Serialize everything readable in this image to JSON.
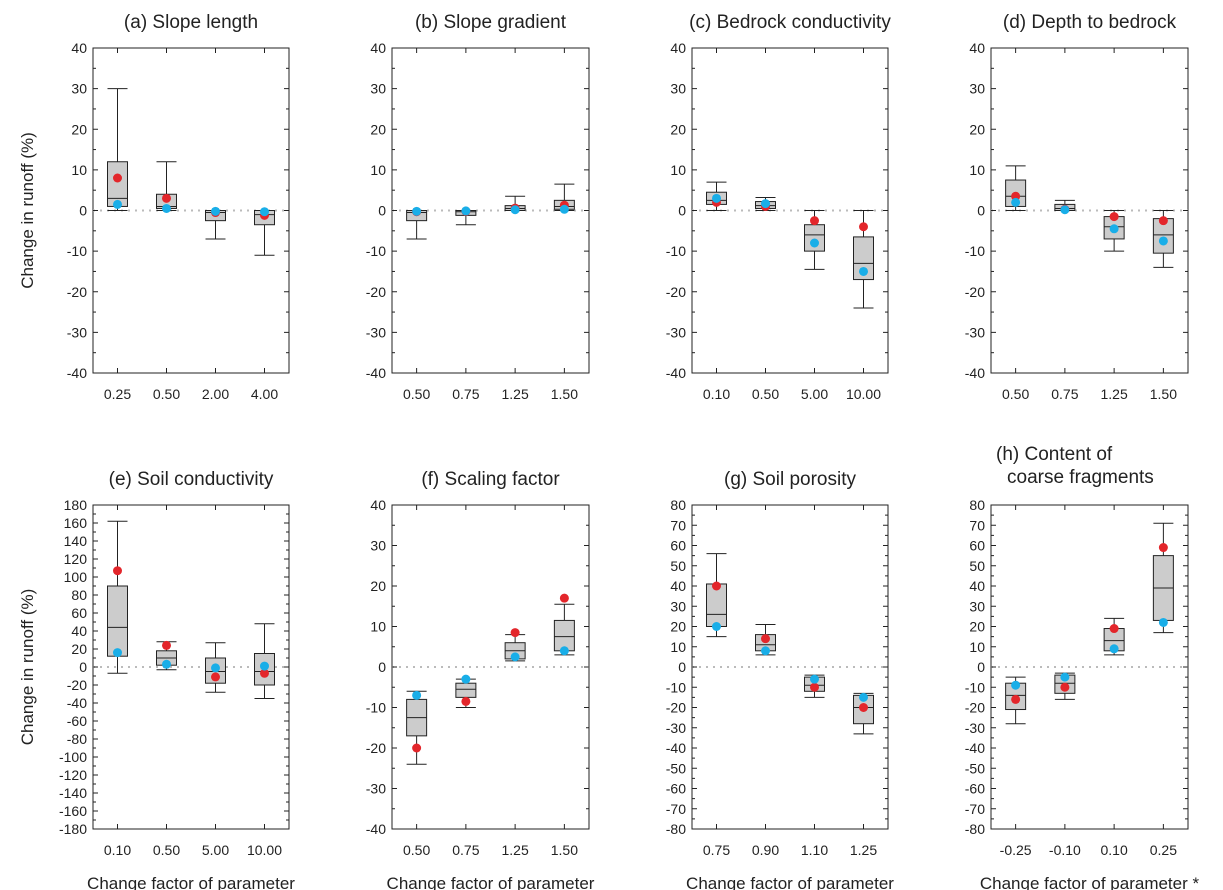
{
  "figure": {
    "ylabel": "Change in runoff (%)",
    "xlabel": "Change factor of parameter",
    "xlabel_star": "Change factor of parameter *",
    "colors": {
      "red_marker": "#e3262b",
      "blue_marker": "#19aee8",
      "box_fill": "#cccccc",
      "zero_line": "#bbbbbb",
      "axis": "#222222"
    }
  },
  "chart_data": [
    {
      "type": "box",
      "title": "(a) Slope length",
      "categories": [
        "0.25",
        "0.50",
        "2.00",
        "4.00"
      ],
      "ylim": [
        -40,
        40
      ],
      "ytick_step": 10,
      "ylabel": "Change in runoff (%)",
      "xlabel": "",
      "boxes": [
        {
          "min": 0,
          "q1": 1,
          "median": 3,
          "q3": 12,
          "max": 30,
          "red": 8,
          "blue": 1.5
        },
        {
          "min": 0,
          "q1": 0.5,
          "median": 1,
          "q3": 4,
          "max": 12,
          "red": 3,
          "blue": 0.5
        },
        {
          "min": -7,
          "q1": -2.5,
          "median": -0.5,
          "q3": 0,
          "max": 0,
          "red": -0.5,
          "blue": -0.2
        },
        {
          "min": -11,
          "q1": -3.5,
          "median": -1,
          "q3": 0,
          "max": 0,
          "red": -1.2,
          "blue": -0.3
        }
      ]
    },
    {
      "type": "box",
      "title": "(b) Slope gradient",
      "categories": [
        "0.50",
        "0.75",
        "1.25",
        "1.50"
      ],
      "ylim": [
        -40,
        40
      ],
      "ytick_step": 10,
      "ylabel": "",
      "xlabel": "",
      "boxes": [
        {
          "min": -7,
          "q1": -2.5,
          "median": -0.5,
          "q3": 0,
          "max": 0,
          "red": -0.3,
          "blue": -0.2
        },
        {
          "min": -3.5,
          "q1": -1.2,
          "median": -0.3,
          "q3": 0,
          "max": 0,
          "red": -0.2,
          "blue": -0.1
        },
        {
          "min": 0,
          "q1": 0,
          "median": 0.5,
          "q3": 1.2,
          "max": 3.5,
          "red": 0.6,
          "blue": 0.2
        },
        {
          "min": 0,
          "q1": 0.3,
          "median": 1,
          "q3": 2.5,
          "max": 6.5,
          "red": 1.3,
          "blue": 0.3
        }
      ]
    },
    {
      "type": "box",
      "title": "(c) Bedrock conductivity",
      "categories": [
        "0.10",
        "0.50",
        "5.00",
        "10.00"
      ],
      "ylim": [
        -40,
        40
      ],
      "ytick_step": 10,
      "ylabel": "",
      "xlabel": "",
      "boxes": [
        {
          "min": 0,
          "q1": 1.5,
          "median": 2.5,
          "q3": 4.5,
          "max": 7,
          "red": 2,
          "blue": 3
        },
        {
          "min": 0,
          "q1": 0.5,
          "median": 1.2,
          "q3": 2.2,
          "max": 3.2,
          "red": 1,
          "blue": 1.7
        },
        {
          "min": -14.5,
          "q1": -10,
          "median": -6,
          "q3": -3.5,
          "max": 0,
          "red": -2.5,
          "blue": -8
        },
        {
          "min": -24,
          "q1": -17,
          "median": -13,
          "q3": -6.5,
          "max": 0,
          "red": -4,
          "blue": -15
        }
      ]
    },
    {
      "type": "box",
      "title": "(d) Depth to bedrock",
      "categories": [
        "0.50",
        "0.75",
        "1.25",
        "1.50"
      ],
      "ylim": [
        -40,
        40
      ],
      "ytick_step": 10,
      "ylabel": "",
      "xlabel": "",
      "boxes": [
        {
          "min": 0,
          "q1": 1,
          "median": 3.5,
          "q3": 7.5,
          "max": 11,
          "red": 3.5,
          "blue": 2
        },
        {
          "min": 0,
          "q1": 0,
          "median": 0.5,
          "q3": 1.5,
          "max": 2.5,
          "red": 0.3,
          "blue": 0.2
        },
        {
          "min": -10,
          "q1": -7,
          "median": -4,
          "q3": -1.5,
          "max": 0,
          "red": -1.5,
          "blue": -4.5
        },
        {
          "min": -14,
          "q1": -10.5,
          "median": -6,
          "q3": -2,
          "max": 0,
          "red": -2.5,
          "blue": -7.5
        }
      ]
    },
    {
      "type": "box",
      "title": "(e) Soil conductivity",
      "categories": [
        "0.10",
        "0.50",
        "5.00",
        "10.00"
      ],
      "ylim": [
        -180,
        180
      ],
      "ytick_step": 20,
      "ylabel": "Change in runoff (%)",
      "xlabel": "Change factor of parameter",
      "boxes": [
        {
          "min": -7,
          "q1": 12,
          "median": 44,
          "q3": 90,
          "max": 162,
          "red": 107,
          "blue": 16
        },
        {
          "min": -3,
          "q1": 2,
          "median": 10,
          "q3": 18,
          "max": 28,
          "red": 24,
          "blue": 3
        },
        {
          "min": -28,
          "q1": -18,
          "median": -5,
          "q3": 10,
          "max": 27,
          "red": -11,
          "blue": -1
        },
        {
          "min": -35,
          "q1": -20,
          "median": -5,
          "q3": 15,
          "max": 48,
          "red": -7,
          "blue": 1
        }
      ]
    },
    {
      "type": "box",
      "title": "(f) Scaling factor",
      "categories": [
        "0.50",
        "0.75",
        "1.25",
        "1.50"
      ],
      "ylim": [
        -40,
        40
      ],
      "ytick_step": 10,
      "ylabel": "",
      "xlabel": "Change factor of parameter",
      "boxes": [
        {
          "min": -24,
          "q1": -17,
          "median": -12.5,
          "q3": -8,
          "max": -6,
          "red": -20,
          "blue": -7
        },
        {
          "min": -10,
          "q1": -7.5,
          "median": -5.5,
          "q3": -4,
          "max": -3,
          "red": -8.5,
          "blue": -3
        },
        {
          "min": 1.5,
          "q1": 2,
          "median": 4,
          "q3": 6,
          "max": 8,
          "red": 8.5,
          "blue": 2.5
        },
        {
          "min": 3,
          "q1": 4,
          "median": 7.5,
          "q3": 11.5,
          "max": 15.5,
          "red": 17,
          "blue": 4
        }
      ]
    },
    {
      "type": "box",
      "title": "(g) Soil porosity",
      "categories": [
        "0.75",
        "0.90",
        "1.10",
        "1.25"
      ],
      "ylim": [
        -80,
        80
      ],
      "ytick_step": 10,
      "ylabel": "",
      "xlabel": "Change factor of parameter",
      "boxes": [
        {
          "min": 15,
          "q1": 20,
          "median": 26,
          "q3": 41,
          "max": 56,
          "red": 40,
          "blue": 20
        },
        {
          "min": 6,
          "q1": 8,
          "median": 11,
          "q3": 16,
          "max": 21,
          "red": 14,
          "blue": 8
        },
        {
          "min": -15,
          "q1": -12,
          "median": -9,
          "q3": -5,
          "max": -4,
          "red": -10,
          "blue": -6
        },
        {
          "min": -33,
          "q1": -28,
          "median": -20,
          "q3": -14,
          "max": -13,
          "red": -20,
          "blue": -15
        }
      ]
    },
    {
      "type": "box",
      "title": "(h) Content of coarse fragments",
      "title_lines": [
        "(h) Content of",
        "coarse fragments"
      ],
      "categories": [
        "-0.25",
        "-0.10",
        "0.10",
        "0.25"
      ],
      "ylim": [
        -80,
        80
      ],
      "ytick_step": 10,
      "ylabel": "",
      "xlabel": "Change factor of parameter *",
      "boxes": [
        {
          "min": -28,
          "q1": -21,
          "median": -14,
          "q3": -8,
          "max": -5,
          "red": -16,
          "blue": -9
        },
        {
          "min": -16,
          "q1": -13,
          "median": -8,
          "q3": -4,
          "max": -3,
          "red": -10,
          "blue": -5
        },
        {
          "min": 6,
          "q1": 8,
          "median": 13,
          "q3": 19,
          "max": 24,
          "red": 19,
          "blue": 9
        },
        {
          "min": 17,
          "q1": 23,
          "median": 39,
          "q3": 55,
          "max": 71,
          "red": 59,
          "blue": 22
        }
      ]
    }
  ]
}
